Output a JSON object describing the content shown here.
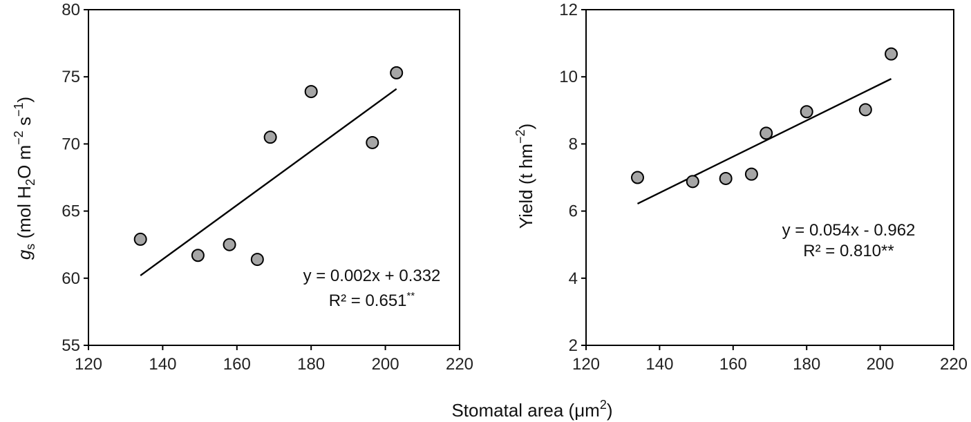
{
  "chart_data": [
    {
      "type": "scatter",
      "panel": "left",
      "x": [
        134,
        149.5,
        158,
        165.5,
        169,
        180,
        196.5,
        203
      ],
      "y": [
        62.9,
        61.7,
        62.5,
        61.4,
        70.5,
        73.9,
        70.1,
        75.3
      ],
      "xlim": [
        120,
        220
      ],
      "ylim": [
        55,
        80
      ],
      "xticks": [
        "120",
        "140",
        "160",
        "180",
        "200",
        "220"
      ],
      "yticks": [
        "55",
        "60",
        "65",
        "70",
        "75",
        "80"
      ],
      "ylabel": "gs (mol H2O m−2 s−1)",
      "trendline": {
        "x": [
          134,
          203
        ],
        "y": [
          60.2,
          74.1
        ]
      },
      "equation": "y = 0.002x + 0.332",
      "r2_text": "R² = 0.651",
      "r2_sig": "**",
      "point_color": "#a6a6a6"
    },
    {
      "type": "scatter",
      "panel": "right",
      "x": [
        134,
        149,
        158,
        165,
        169,
        180,
        196,
        203
      ],
      "y": [
        7.0,
        6.88,
        6.97,
        7.1,
        8.32,
        8.96,
        9.02,
        10.68
      ],
      "xlim": [
        120,
        220
      ],
      "ylim": [
        2,
        12
      ],
      "xticks": [
        "120",
        "140",
        "160",
        "180",
        "200",
        "220"
      ],
      "yticks": [
        "2",
        "4",
        "6",
        "8",
        "10",
        "12"
      ],
      "ylabel": "Yield (t hm−2)",
      "trendline": {
        "x": [
          134,
          203
        ],
        "y": [
          6.22,
          9.94
        ]
      },
      "equation": "y = 0.054x - 0.962",
      "r2_text": "R² = 0.810**",
      "point_color": "#a6a6a6"
    }
  ],
  "shared_xlabel": "Stomatal area (μm2)",
  "labels": {
    "left_ylabel": {
      "g": "g",
      "s": "s",
      "pre": "(mol H",
      "sub2": "2",
      "post": "O m",
      "exp1": "−2",
      "mid": " s",
      "exp2": "−1",
      "close": ")"
    },
    "right_ylabel": {
      "pre": "Yield (t hm",
      "exp": "−2",
      "close": ")"
    },
    "xlabel": {
      "pre": "Stomatal area (μm",
      "exp": "2",
      "close": ")"
    }
  }
}
